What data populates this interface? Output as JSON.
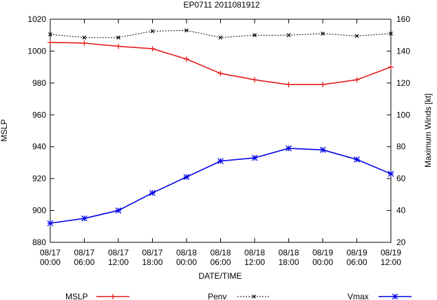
{
  "chart_data": {
    "type": "line",
    "title": "EP0711 2011081912",
    "xlabel": "DATE/TIME",
    "ylabel_left": "MSLP",
    "ylabel_right": "Maximum Winds [kt]",
    "ylim_left": [
      880,
      1020
    ],
    "ylim_right": [
      20,
      160
    ],
    "yticks_left": [
      "880",
      "900",
      "920",
      "940",
      "960",
      "980",
      "1000",
      "1020"
    ],
    "yticks_right": [
      "20",
      "40",
      "60",
      "80",
      "100",
      "120",
      "140",
      "160"
    ],
    "categories": [
      [
        "08/17",
        "00:00"
      ],
      [
        "08/17",
        "06:00"
      ],
      [
        "08/17",
        "12:00"
      ],
      [
        "08/17",
        "18:00"
      ],
      [
        "08/18",
        "00:00"
      ],
      [
        "08/18",
        "06:00"
      ],
      [
        "08/18",
        "12:00"
      ],
      [
        "08/18",
        "18:00"
      ],
      [
        "08/19",
        "00:00"
      ],
      [
        "08/19",
        "06:00"
      ],
      [
        "08/19",
        "12:00"
      ]
    ],
    "series": [
      {
        "name": "MSLP",
        "axis": "left",
        "color": "#e41a1c",
        "marker": "plus",
        "dash": false,
        "values": [
          1005.5,
          1005,
          1003,
          1001.5,
          995,
          986,
          982,
          979,
          979,
          982,
          990
        ]
      },
      {
        "name": "Penv",
        "axis": "left",
        "color": "#000000",
        "marker": "x",
        "dash": true,
        "values": [
          1010.5,
          1008.5,
          1008.5,
          1012.5,
          1013,
          1008.5,
          1010,
          1010,
          1011,
          1009.5,
          1011
        ]
      },
      {
        "name": "Vmax",
        "axis": "right",
        "color": "#0000e6",
        "marker": "star",
        "dash": false,
        "values": [
          32,
          35,
          40,
          51,
          61,
          71,
          73,
          79,
          78,
          72,
          63
        ]
      }
    ],
    "grid": false,
    "legend_position": "bottom"
  }
}
